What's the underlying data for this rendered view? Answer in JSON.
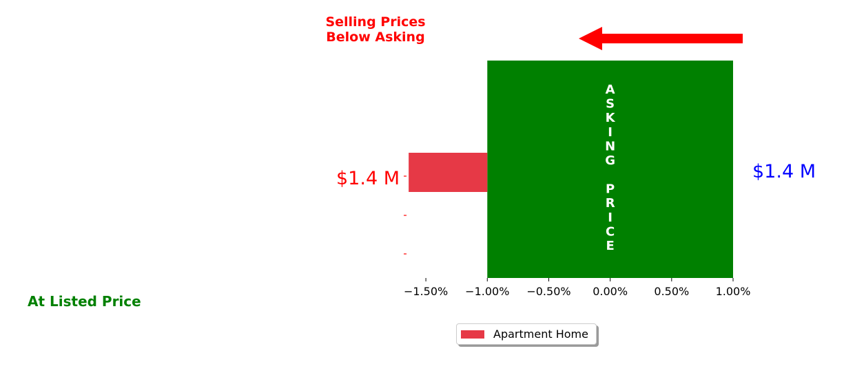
{
  "colors": {
    "asking_band": "#008000",
    "bar": "#e63946",
    "below_asking": "#ff0000",
    "at_listed": "#008000",
    "asking_label": "#0000ff",
    "tick_red": "#ff0000"
  },
  "annotations": {
    "selling_below_line1": "Selling Prices",
    "selling_below_line2": "Below Asking",
    "at_listed_price": "At Listed Price",
    "asking_price_vertical": "ASKING PRICE",
    "asking_price_value": "$1.4 M",
    "bar_label": "$1.4 M"
  },
  "legend": {
    "label": "Apartment Home"
  },
  "chart_data": {
    "type": "bar",
    "orientation": "horizontal",
    "title": "",
    "xlabel": "",
    "ylabel": "",
    "xlim": [
      -1.68,
      1.0
    ],
    "x_ticks": [
      -1.5,
      -1.0,
      -0.5,
      0.0,
      0.5,
      1.0
    ],
    "x_tick_labels": [
      "−1.50%",
      "−1.00%",
      "−0.50%",
      "0.00%",
      "0.50%",
      "1.00%"
    ],
    "asking_price_band": [
      -1.0,
      1.0
    ],
    "series": [
      {
        "name": "Apartment Home",
        "start": -1.0,
        "values": [
          -1.64
        ],
        "labels": [
          "$1.4 M"
        ]
      }
    ],
    "y_ticks": 3,
    "arrow_direction": "left",
    "grid": false,
    "legend_position": "bottom-center"
  }
}
